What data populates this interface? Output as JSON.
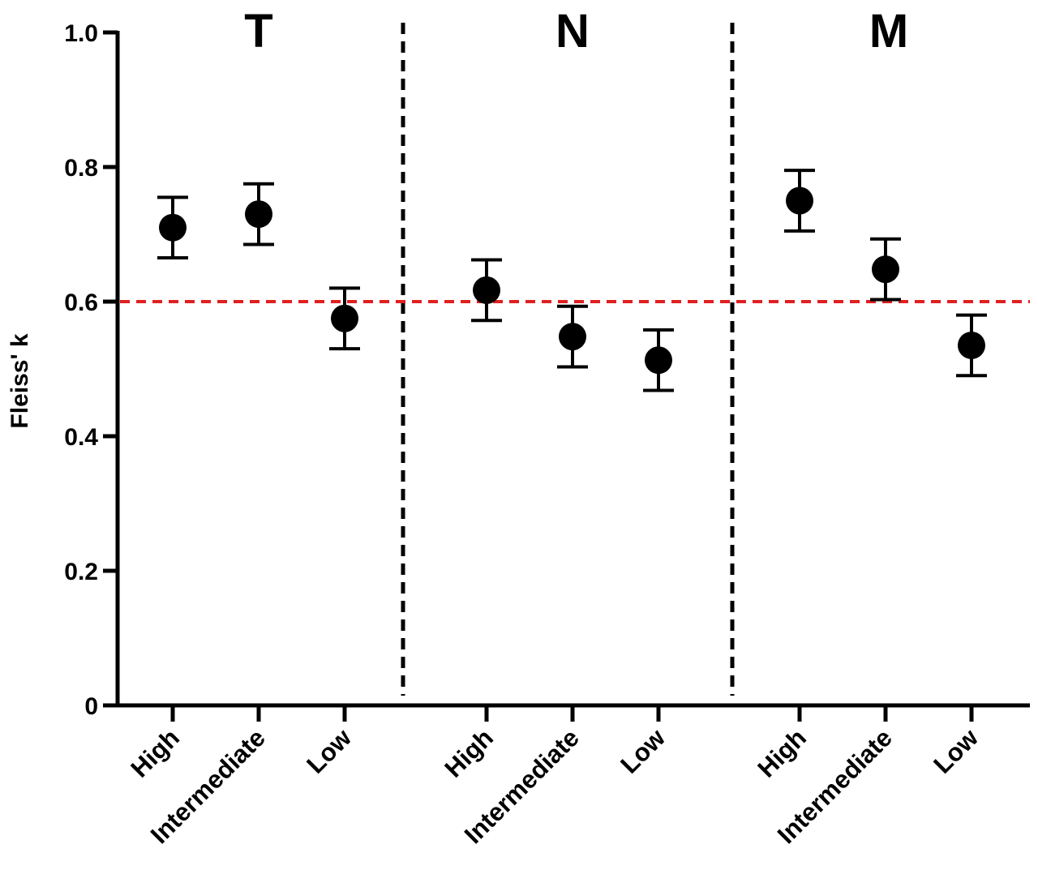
{
  "chart_data": {
    "type": "scatter",
    "ylabel": "Fleiss' k",
    "ylim": [
      0,
      1.0
    ],
    "yticks": [
      "0",
      "0.2",
      "0.4",
      "0.6",
      "0.8",
      "1.0"
    ],
    "reference_line": {
      "y": 0.6,
      "color": "#e02020",
      "style": "dashed"
    },
    "groups": [
      {
        "label": "T",
        "categories": [
          "High",
          "Intermediate",
          "Low"
        ],
        "values": [
          0.71,
          0.73,
          0.575
        ],
        "error_low": [
          0.665,
          0.685,
          0.53
        ],
        "error_high": [
          0.755,
          0.775,
          0.62
        ]
      },
      {
        "label": "N",
        "categories": [
          "High",
          "Intermediate",
          "Low"
        ],
        "values": [
          0.617,
          0.548,
          0.513
        ],
        "error_low": [
          0.572,
          0.503,
          0.468
        ],
        "error_high": [
          0.662,
          0.593,
          0.558
        ]
      },
      {
        "label": "M",
        "categories": [
          "High",
          "Intermediate",
          "Low"
        ],
        "values": [
          0.75,
          0.648,
          0.535
        ],
        "error_low": [
          0.705,
          0.603,
          0.49
        ],
        "error_high": [
          0.795,
          0.693,
          0.58
        ]
      }
    ],
    "grid": false,
    "marker_color": "#000000"
  }
}
